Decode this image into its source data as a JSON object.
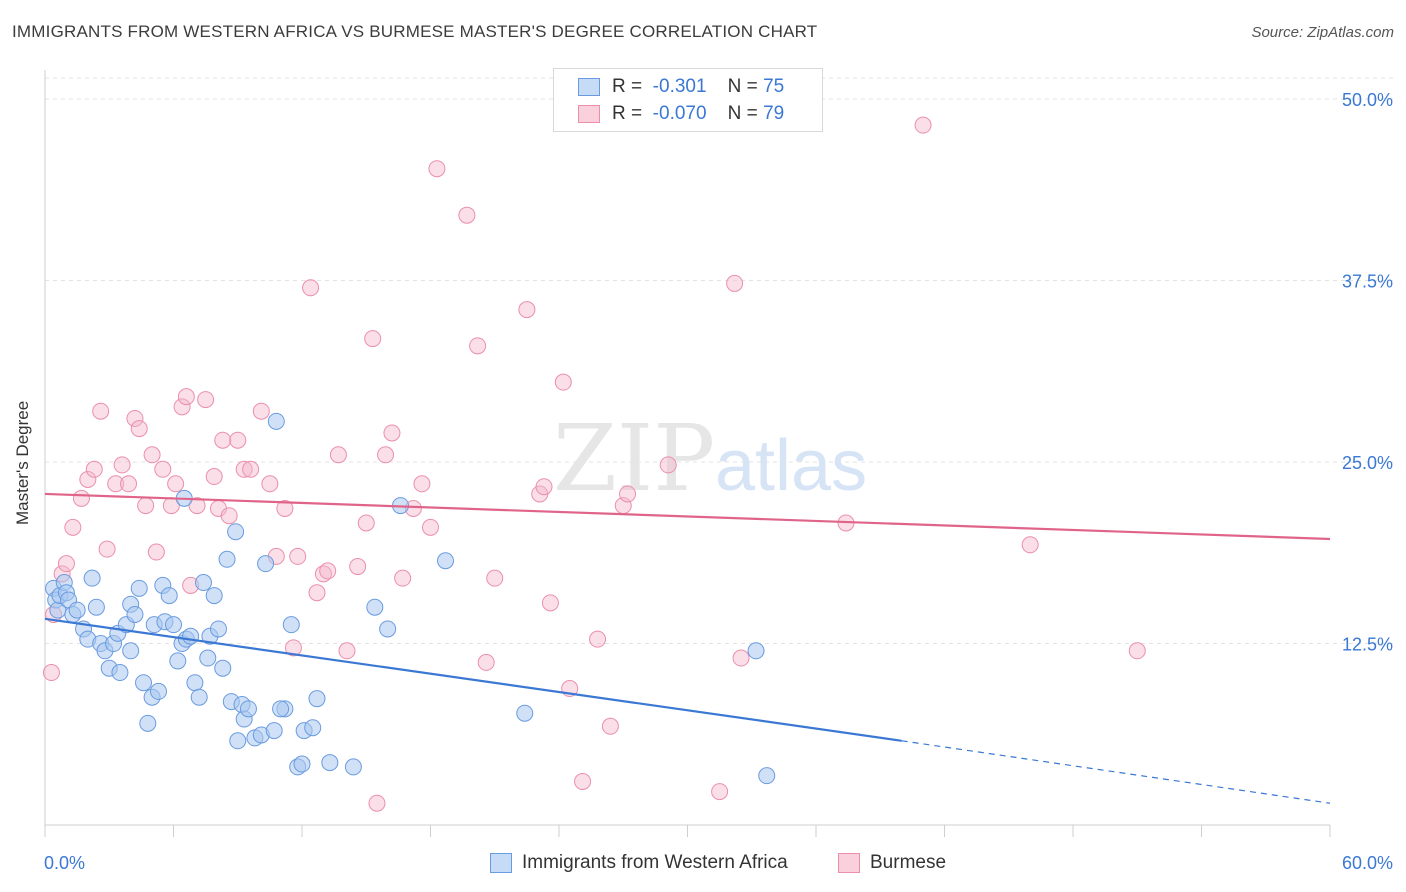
{
  "title": "IMMIGRANTS FROM WESTERN AFRICA VS BURMESE MASTER'S DEGREE CORRELATION CHART",
  "source": "Source: ZipAtlas.com",
  "watermark": {
    "zip": "ZIP",
    "atlas": "atlas"
  },
  "colors": {
    "blue": "#3a78d4",
    "blue_fill": "#a9c8f0",
    "pink": "#e0648a",
    "pink_fill": "#f5b8cb",
    "axis_text": "#3a78d4"
  },
  "legend": {
    "rows": [
      {
        "r_label": "R =",
        "r_value": "-0.301",
        "n_label": "N =",
        "n_value": "75"
      },
      {
        "r_label": "R =",
        "r_value": "-0.070",
        "n_label": "N =",
        "n_value": "79"
      }
    ]
  },
  "bottom_legend": {
    "series1": "Immigrants from Western Africa",
    "series2": "Burmese"
  },
  "chart_data": {
    "type": "scatter",
    "title": "IMMIGRANTS FROM WESTERN AFRICA VS BURMESE MASTER'S DEGREE CORRELATION CHART",
    "xlabel": "",
    "ylabel": "Master's Degree",
    "xlim": [
      0,
      60
    ],
    "ylim": [
      0,
      52
    ],
    "x_tick_labels": [
      "0.0%",
      "60.0%"
    ],
    "y_ticks": [
      12.5,
      25.0,
      37.5,
      50.0
    ],
    "y_tick_labels": [
      "12.5%",
      "25.0%",
      "37.5%",
      "50.0%"
    ],
    "grid": true,
    "legend_position": "top-center",
    "series": [
      {
        "name": "Immigrants from Western Africa",
        "r": -0.301,
        "n": 75,
        "trend": {
          "x0": 0,
          "y0": 14.2,
          "x1": 40,
          "y1": 5.8,
          "dash_to_x": 60,
          "dash_to_y": 1.5
        },
        "points": [
          [
            0.4,
            16.3
          ],
          [
            0.5,
            15.5
          ],
          [
            0.6,
            14.8
          ],
          [
            0.7,
            15.8
          ],
          [
            0.9,
            16.7
          ],
          [
            1.0,
            16.0
          ],
          [
            1.1,
            15.5
          ],
          [
            1.3,
            14.5
          ],
          [
            1.5,
            14.8
          ],
          [
            1.8,
            13.5
          ],
          [
            2.0,
            12.8
          ],
          [
            2.2,
            17.0
          ],
          [
            2.4,
            15.0
          ],
          [
            2.6,
            12.5
          ],
          [
            2.8,
            12.0
          ],
          [
            3.0,
            10.8
          ],
          [
            3.2,
            12.5
          ],
          [
            3.4,
            13.2
          ],
          [
            3.5,
            10.5
          ],
          [
            3.8,
            13.8
          ],
          [
            4.0,
            15.2
          ],
          [
            4.2,
            14.5
          ],
          [
            4.4,
            16.3
          ],
          [
            4.6,
            9.8
          ],
          [
            4.8,
            7.0
          ],
          [
            5.0,
            8.8
          ],
          [
            5.1,
            13.8
          ],
          [
            5.3,
            9.2
          ],
          [
            5.5,
            16.5
          ],
          [
            5.6,
            14.0
          ],
          [
            5.8,
            15.8
          ],
          [
            6.0,
            13.8
          ],
          [
            6.2,
            11.3
          ],
          [
            6.4,
            12.5
          ],
          [
            6.5,
            22.5
          ],
          [
            6.6,
            12.8
          ],
          [
            6.8,
            13.0
          ],
          [
            7.0,
            9.8
          ],
          [
            7.2,
            8.8
          ],
          [
            7.4,
            16.7
          ],
          [
            7.6,
            11.5
          ],
          [
            7.7,
            13.0
          ],
          [
            7.9,
            15.8
          ],
          [
            8.1,
            13.5
          ],
          [
            8.3,
            10.8
          ],
          [
            8.5,
            18.3
          ],
          [
            8.7,
            8.5
          ],
          [
            8.9,
            20.2
          ],
          [
            9.0,
            5.8
          ],
          [
            9.2,
            8.3
          ],
          [
            9.3,
            7.3
          ],
          [
            9.5,
            8.0
          ],
          [
            9.8,
            6.0
          ],
          [
            10.1,
            6.2
          ],
          [
            10.3,
            18.0
          ],
          [
            10.7,
            6.5
          ],
          [
            10.8,
            27.8
          ],
          [
            11.2,
            8.0
          ],
          [
            11.5,
            13.8
          ],
          [
            11.8,
            4.0
          ],
          [
            12.0,
            4.2
          ],
          [
            12.1,
            6.5
          ],
          [
            12.5,
            6.7
          ],
          [
            12.7,
            8.7
          ],
          [
            13.3,
            4.3
          ],
          [
            14.4,
            4.0
          ],
          [
            15.4,
            15.0
          ],
          [
            16.0,
            13.5
          ],
          [
            16.6,
            22.0
          ],
          [
            18.7,
            18.2
          ],
          [
            22.4,
            7.7
          ],
          [
            33.2,
            12.0
          ],
          [
            33.7,
            3.4
          ],
          [
            11.0,
            8.0
          ],
          [
            4.0,
            12.0
          ]
        ]
      },
      {
        "name": "Burmese",
        "r": -0.07,
        "n": 79,
        "trend": {
          "x0": 0,
          "y0": 22.8,
          "x1": 60,
          "y1": 19.7
        },
        "points": [
          [
            0.3,
            10.5
          ],
          [
            0.4,
            14.5
          ],
          [
            0.8,
            17.3
          ],
          [
            1.0,
            18.0
          ],
          [
            1.3,
            20.5
          ],
          [
            1.7,
            22.5
          ],
          [
            2.0,
            23.8
          ],
          [
            2.3,
            24.5
          ],
          [
            2.6,
            28.5
          ],
          [
            2.9,
            19.0
          ],
          [
            3.3,
            23.5
          ],
          [
            3.6,
            24.8
          ],
          [
            3.9,
            23.5
          ],
          [
            4.2,
            28.0
          ],
          [
            4.4,
            27.3
          ],
          [
            4.7,
            22.0
          ],
          [
            5.0,
            25.5
          ],
          [
            5.2,
            18.8
          ],
          [
            5.5,
            24.5
          ],
          [
            5.9,
            22.0
          ],
          [
            6.1,
            23.5
          ],
          [
            6.4,
            28.8
          ],
          [
            6.6,
            29.5
          ],
          [
            6.8,
            16.5
          ],
          [
            7.1,
            22.0
          ],
          [
            7.5,
            29.3
          ],
          [
            7.9,
            24.0
          ],
          [
            8.1,
            21.8
          ],
          [
            8.3,
            26.5
          ],
          [
            8.6,
            21.3
          ],
          [
            9.0,
            26.5
          ],
          [
            9.3,
            24.5
          ],
          [
            9.6,
            24.5
          ],
          [
            10.1,
            28.5
          ],
          [
            10.5,
            23.5
          ],
          [
            10.8,
            18.5
          ],
          [
            11.2,
            21.8
          ],
          [
            11.6,
            12.2
          ],
          [
            11.8,
            18.5
          ],
          [
            12.4,
            37.0
          ],
          [
            12.7,
            16.0
          ],
          [
            13.0,
            17.3
          ],
          [
            13.2,
            17.5
          ],
          [
            13.7,
            25.5
          ],
          [
            14.1,
            12.0
          ],
          [
            14.6,
            17.8
          ],
          [
            15.0,
            20.8
          ],
          [
            15.3,
            33.5
          ],
          [
            15.5,
            1.5
          ],
          [
            15.9,
            25.5
          ],
          [
            16.2,
            27.0
          ],
          [
            16.7,
            17.0
          ],
          [
            17.2,
            21.8
          ],
          [
            17.6,
            23.5
          ],
          [
            18.0,
            20.5
          ],
          [
            18.3,
            45.2
          ],
          [
            19.7,
            42.0
          ],
          [
            20.2,
            33.0
          ],
          [
            20.6,
            11.2
          ],
          [
            21.0,
            17.0
          ],
          [
            22.5,
            35.5
          ],
          [
            23.1,
            22.8
          ],
          [
            23.3,
            23.3
          ],
          [
            23.6,
            15.3
          ],
          [
            24.2,
            30.5
          ],
          [
            24.5,
            9.4
          ],
          [
            25.1,
            3.0
          ],
          [
            25.8,
            12.8
          ],
          [
            26.4,
            6.8
          ],
          [
            27.0,
            22.0
          ],
          [
            27.2,
            22.8
          ],
          [
            29.1,
            24.8
          ],
          [
            31.5,
            2.3
          ],
          [
            32.2,
            37.3
          ],
          [
            32.5,
            11.5
          ],
          [
            37.4,
            20.8
          ],
          [
            41.0,
            48.2
          ],
          [
            46.0,
            19.3
          ],
          [
            51.0,
            12.0
          ]
        ]
      }
    ]
  }
}
